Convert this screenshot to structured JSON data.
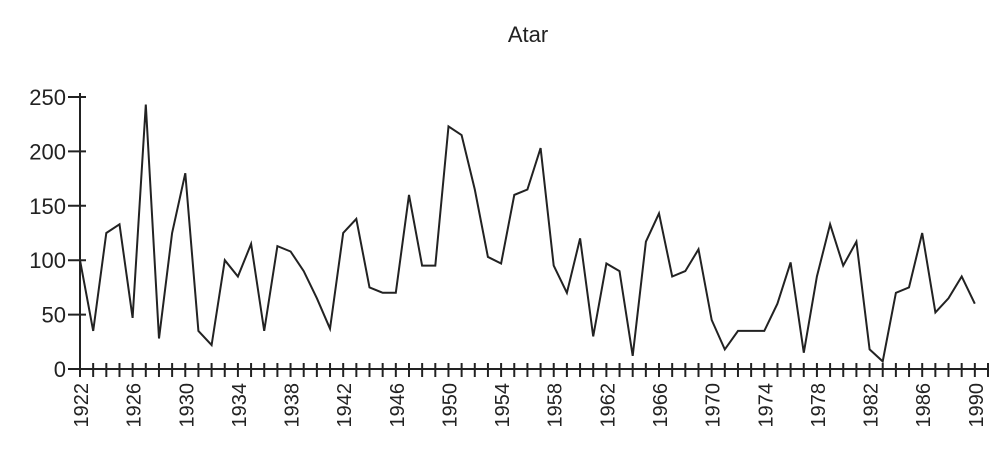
{
  "chart_data": {
    "type": "line",
    "title": "Atar",
    "xlabel": "",
    "ylabel": "",
    "ylim": [
      0,
      250
    ],
    "yticks": [
      0,
      50,
      100,
      150,
      200,
      250
    ],
    "xlim": [
      1922,
      1991
    ],
    "xtick_labels": [
      "1922",
      "1926",
      "1930",
      "1934",
      "1938",
      "1942",
      "1946",
      "1950",
      "1954",
      "1958",
      "1962",
      "1966",
      "1970",
      "1974",
      "1978",
      "1982",
      "1986",
      "1990"
    ],
    "grid": false,
    "legend": "none",
    "series": [
      {
        "x": [
          1922,
          1923,
          1924,
          1925,
          1926,
          1927,
          1928,
          1929,
          1930,
          1931,
          1932,
          1933,
          1934,
          1935,
          1936,
          1937,
          1938,
          1939,
          1940,
          1941,
          1942,
          1943,
          1944,
          1945,
          1946,
          1947,
          1948,
          1949,
          1950,
          1951,
          1952,
          1953,
          1954,
          1955,
          1956,
          1957,
          1958,
          1959,
          1960,
          1961,
          1962,
          1963,
          1964,
          1965,
          1966,
          1967,
          1968,
          1969,
          1970,
          1971,
          1972,
          1973,
          1974,
          1975,
          1976,
          1977,
          1978,
          1979,
          1980,
          1981,
          1982,
          1983,
          1984,
          1985,
          1986,
          1987,
          1988,
          1989,
          1990,
          1991
        ],
        "values": [
          100,
          35,
          125,
          133,
          47,
          243,
          28,
          125,
          180,
          35,
          22,
          100,
          85,
          115,
          35,
          113,
          108,
          90,
          65,
          37,
          125,
          138,
          75,
          70,
          70,
          160,
          95,
          95,
          223,
          215,
          165,
          103,
          97,
          160,
          165,
          203,
          95,
          70,
          120,
          30,
          97,
          90,
          12,
          117,
          143,
          85,
          90,
          110,
          45,
          18,
          35,
          35,
          35,
          60,
          98,
          15,
          85,
          133,
          95,
          117,
          18,
          7,
          70,
          75,
          125,
          52,
          65,
          85,
          60,
          null
        ]
      }
    ]
  }
}
